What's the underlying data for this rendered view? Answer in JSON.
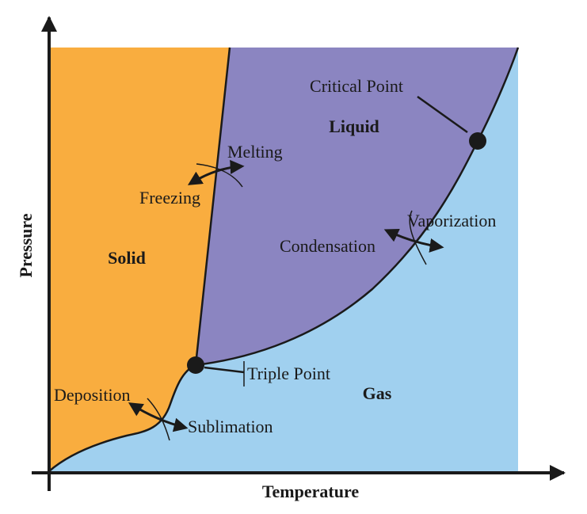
{
  "axes": {
    "x_label": "Temperature",
    "y_label": "Pressure"
  },
  "regions": {
    "solid": {
      "label": "Solid",
      "color": "#F9AD3F"
    },
    "liquid": {
      "label": "Liquid",
      "color": "#8B85C1"
    },
    "gas": {
      "label": "Gas",
      "color": "#A0D0EF"
    }
  },
  "points": {
    "triple": "Triple Point",
    "critical": "Critical Point"
  },
  "transitions": {
    "melting": "Melting",
    "freezing": "Freezing",
    "vaporization": "Vaporization",
    "condensation": "Condensation",
    "deposition": "Deposition",
    "sublimation": "Sublimation"
  },
  "colors": {
    "line": "#1a1a1a"
  }
}
